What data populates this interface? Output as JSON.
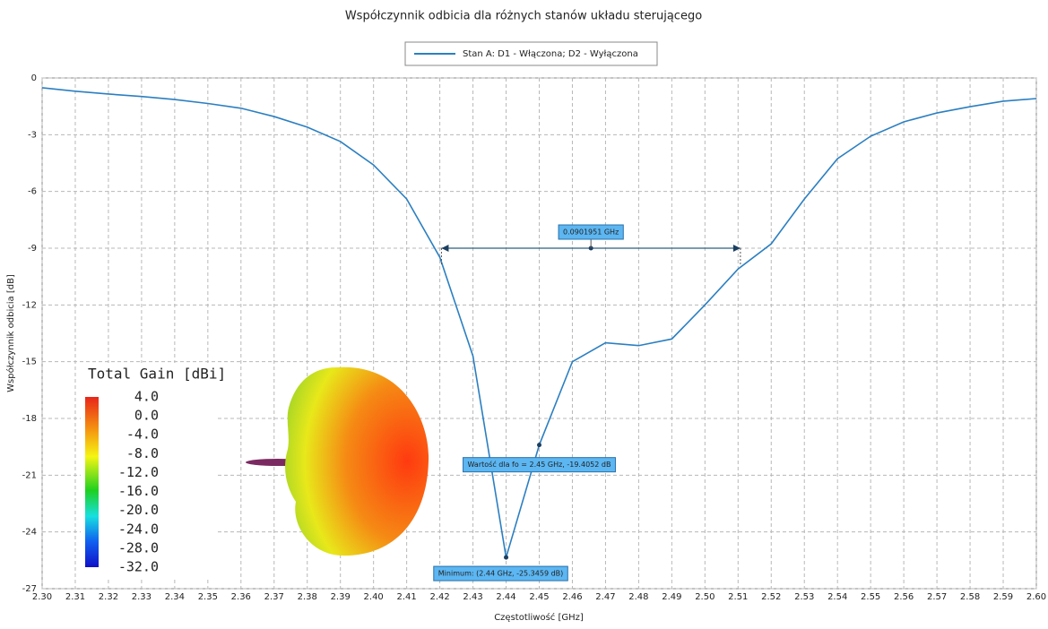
{
  "chart_data": {
    "type": "line",
    "title": "Współczynnik odbicia dla różnych stanów układu sterującego",
    "xlabel": "Częstotliwość [GHz]",
    "ylabel": "Współczynnik odbicia [dB]",
    "x": [
      2.3,
      2.31,
      2.32,
      2.33,
      2.34,
      2.35,
      2.36,
      2.37,
      2.38,
      2.39,
      2.4,
      2.41,
      2.42,
      2.43,
      2.44,
      2.45,
      2.46,
      2.47,
      2.48,
      2.49,
      2.5,
      2.51,
      2.52,
      2.53,
      2.54,
      2.55,
      2.56,
      2.57,
      2.58,
      2.59,
      2.6
    ],
    "series": [
      {
        "name": "Stan A: D1 - Włączona; D2 - Wyłączona",
        "color": "#2b7fc1",
        "values": [
          -0.52,
          -0.7,
          -0.85,
          -0.98,
          -1.14,
          -1.35,
          -1.6,
          -2.04,
          -2.6,
          -3.36,
          -4.6,
          -6.4,
          -9.48,
          -14.7,
          -25.3459,
          -19.4052,
          -15.0,
          -14.0,
          -14.15,
          -13.8,
          -12.0,
          -10.1,
          -8.77,
          -6.4,
          -4.27,
          -3.08,
          -2.32,
          -1.85,
          -1.52,
          -1.23,
          -1.09
        ]
      }
    ],
    "xlim": [
      2.3,
      2.6
    ],
    "ylim": [
      -27,
      0
    ],
    "xticks": [
      {
        "value": 2.3,
        "label": "2.30"
      },
      2.31,
      2.32,
      2.33,
      2.34,
      2.35,
      2.36,
      2.37,
      2.38,
      2.39,
      {
        "value": 2.4,
        "label": "2.40"
      },
      2.41,
      2.42,
      2.43,
      2.44,
      2.45,
      2.46,
      2.47,
      2.48,
      2.49,
      {
        "value": 2.5,
        "label": "2.50"
      },
      2.51,
      2.52,
      2.53,
      2.54,
      2.55,
      2.56,
      2.57,
      2.58,
      2.59,
      {
        "value": 2.6,
        "label": "2.60"
      }
    ],
    "yticks": [
      0,
      -3,
      -6,
      -9,
      -12,
      -15,
      -18,
      -21,
      -24,
      -27
    ],
    "grid": true,
    "bandwidth": {
      "text": "0.0901951 GHz",
      "x": [
        2.4205,
        2.5107
      ],
      "y": -9
    },
    "annotations": [
      {
        "text": "Wartość dla fo = 2.45 GHz, -19.4052 dB",
        "x": 2.45,
        "y": -19.4052
      },
      {
        "text": "Minimum: (2.44 GHz, -25.3459 dB)",
        "x": 2.44,
        "y": -25.3459
      }
    ],
    "colorbar": {
      "title": "Total Gain [dBi]",
      "ticks": [
        {
          "value": 4,
          "label": "4.0"
        },
        {
          "value": 0,
          "label": "0.0"
        },
        {
          "value": -4,
          "label": "-4.0"
        },
        {
          "value": -8,
          "label": "-8.0"
        },
        {
          "value": -12,
          "label": "-12.0"
        },
        {
          "value": -16,
          "label": "-16.0"
        },
        {
          "value": -20,
          "label": "-20.0"
        },
        {
          "value": -24,
          "label": "-24.0"
        },
        {
          "value": -28,
          "label": "-28.0"
        },
        {
          "value": -32,
          "label": "-32.0"
        }
      ]
    }
  }
}
